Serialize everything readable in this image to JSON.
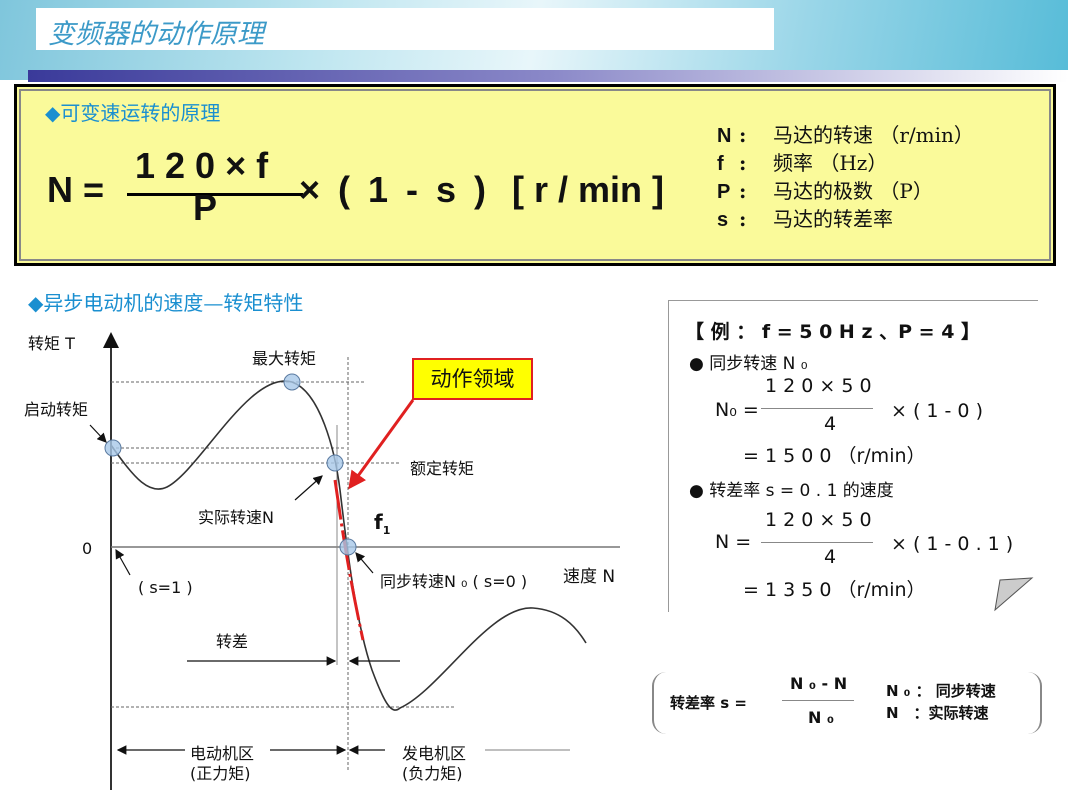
{
  "slide": {
    "title": "变频器的动作原理"
  },
  "formula_box": {
    "heading": "◆可变速运转的原理",
    "lhs": "N =",
    "numerator": "1 2 0 × f",
    "denominator": "P",
    "rest": "× ( 1 - s )",
    "unit": "[ r / min ]",
    "definitions": [
      {
        "sym": "N",
        "sep": ":",
        "text": "马达的转速 （r/min）"
      },
      {
        "sym": "f",
        "sep": ":",
        "text": "频率 （Hz）"
      },
      {
        "sym": "P",
        "sep": ":",
        "text": "马达的极数 （P）"
      },
      {
        "sym": "s",
        "sep": ":",
        "text": "马达的转差率"
      }
    ]
  },
  "chart": {
    "heading": "◆异步电动机的速度—转矩特性",
    "y_axis": "转矩 T",
    "x_axis": "速度 N",
    "zero": "0",
    "max_torque": "最大转矩",
    "start_torque": "启动转矩",
    "rated_torque": "额定转矩",
    "actual_speed": "实际转速N",
    "f1": "f",
    "f1_sub": "1",
    "s1": "( s=1 )",
    "sync_speed": "同步转速N ₀ ( s=0 )",
    "slip": "转差",
    "motor_zone": "电动机区",
    "motor_zone_sub": "(正力矩)",
    "gen_zone": "发电机区",
    "gen_zone_sub": "(负力矩)",
    "action_zone": "动作领域",
    "colors": {
      "curve": "#333333",
      "action": "#e02020",
      "action_box": "#ffff00",
      "marker": "#a8c8e8"
    }
  },
  "example": {
    "title": "【 例 ： f = 5 0 H z 、P = 4 】",
    "b1": "● 同步转速 N ₀",
    "e1_lhs": "N₀ =",
    "e1_num": "1 2 0 × 5 0",
    "e1_den": "4",
    "e1_rest": "× ( 1 - 0 )",
    "e1_res": "= 1 5 0 0 （r/min）",
    "b2": "● 转差率 s = 0 . 1 的速度",
    "e2_lhs": "N =",
    "e2_num": "1 2 0 × 5 0",
    "e2_den": "4",
    "e2_rest": "× ( 1 - 0 . 1 )",
    "e2_res": "= 1 3 5 0 （r/min）"
  },
  "slip_formula": {
    "lhs": "转差率 s =",
    "num": "N ₀ - N",
    "den": "N ₀",
    "d1": "N ₀ ： 同步转速",
    "d2": "N　：实际转速"
  }
}
